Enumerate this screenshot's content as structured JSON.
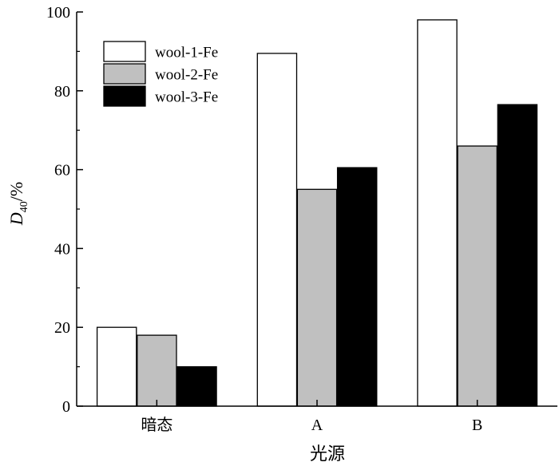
{
  "chart_data": {
    "type": "bar",
    "title": "",
    "xlabel": "光源",
    "ylabel_main": "D",
    "ylabel_sub": "40",
    "ylabel_unit": "/%",
    "categories": [
      "暗态",
      "A",
      "B"
    ],
    "series": [
      {
        "name": "wool-1-Fe",
        "values": [
          20,
          89.5,
          98
        ],
        "color": "#ffffff"
      },
      {
        "name": "wool-2-Fe",
        "values": [
          18,
          55,
          66
        ],
        "color": "#c0c0c0"
      },
      {
        "name": "wool-3-Fe",
        "values": [
          10,
          60.5,
          76.5
        ],
        "color": "#000000"
      }
    ],
    "ylim": [
      0,
      100
    ],
    "yticks": [
      "0",
      "20",
      "40",
      "60",
      "80",
      "100"
    ],
    "grid": false,
    "legend_position": "top-left"
  }
}
